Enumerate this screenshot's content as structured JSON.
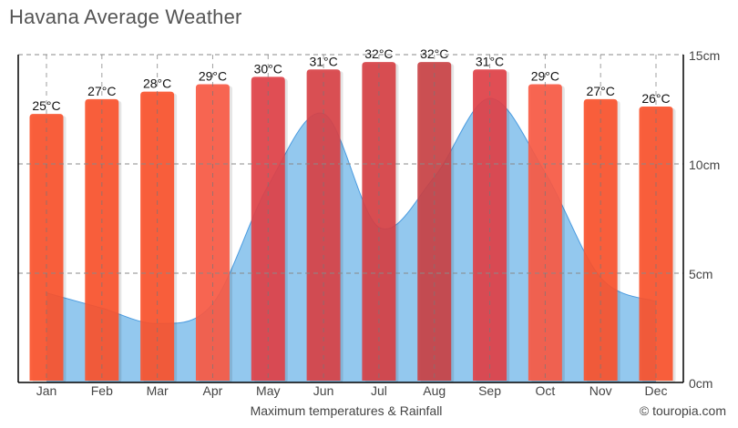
{
  "chart_data": {
    "type": "bar+area",
    "title": "Havana Average Weather",
    "xlabel": "Maximum temperatures & Rainfall",
    "credit": "© touropia.com",
    "categories": [
      "Jan",
      "Feb",
      "Mar",
      "Apr",
      "May",
      "Jun",
      "Jul",
      "Aug",
      "Sep",
      "Oct",
      "Nov",
      "Dec"
    ],
    "series": [
      {
        "type": "bar",
        "unit": "°C",
        "values": [
          25,
          27,
          28,
          29,
          30,
          31,
          32,
          32,
          31,
          29,
          27,
          26
        ],
        "colors": [
          "#fa532c",
          "#fa532c",
          "#fa532c",
          "#f85a44",
          "#e04148",
          "#d84247",
          "#d64044",
          "#c94245",
          "#e04148",
          "#f85a44",
          "#fa532c",
          "#fa532c"
        ]
      },
      {
        "type": "area",
        "unit": "cm",
        "values": [
          4.1,
          3.4,
          2.7,
          3.6,
          9.0,
          12.3,
          7.1,
          9.4,
          13.0,
          9.6,
          4.8,
          3.7
        ],
        "color": "#93c8ee",
        "line_color": "#4a9be0"
      }
    ],
    "y_right": {
      "range": [
        0,
        15
      ],
      "ticks": [
        "0cm",
        "5cm",
        "10cm",
        "15cm"
      ],
      "tick_values": [
        0,
        5,
        10,
        15
      ]
    },
    "grid": true
  }
}
